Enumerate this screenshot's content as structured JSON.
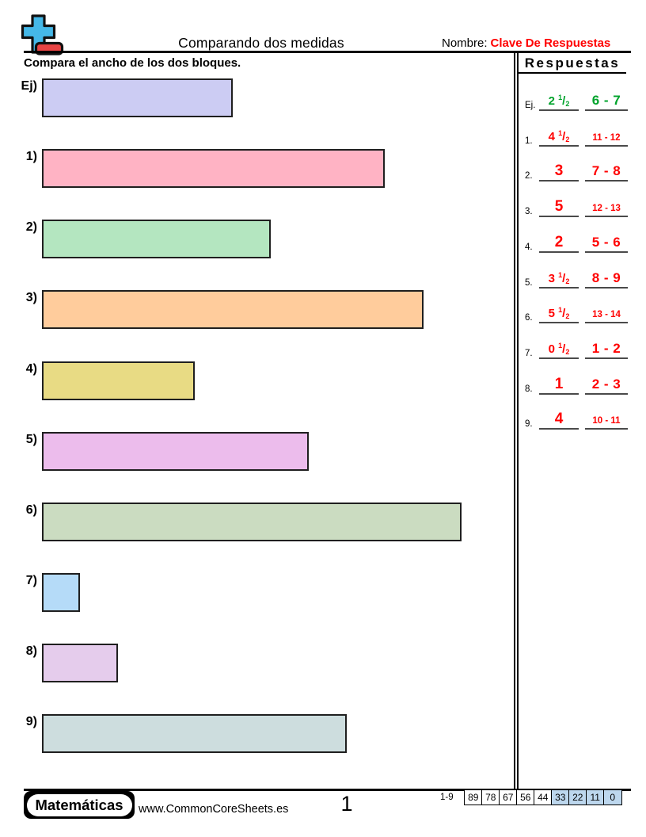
{
  "header": {
    "title": "Comparando dos medidas",
    "name_label": "Nombre:",
    "name_value": "Clave De Respuestas",
    "instruction": "Compara el ancho de los dos bloques.",
    "name_color": "#FF0000"
  },
  "logo": {
    "plus_color": "#45B8E8",
    "minus_color": "#E84444"
  },
  "problems": [
    {
      "label": "Ej)",
      "units": 2.5,
      "color": "#CCCCF3"
    },
    {
      "label": "1)",
      "units": 4.5,
      "color": "#FFB3C4"
    },
    {
      "label": "2)",
      "units": 3,
      "color": "#B4E6C0"
    },
    {
      "label": "3)",
      "units": 5,
      "color": "#FFCC9C"
    },
    {
      "label": "4)",
      "units": 2,
      "color": "#E8DB84"
    },
    {
      "label": "5)",
      "units": 3.5,
      "color": "#ECBCEC"
    },
    {
      "label": "6)",
      "units": 5.5,
      "color": "#CBDCC1"
    },
    {
      "label": "7)",
      "units": 0.5,
      "color": "#B5DBF8"
    },
    {
      "label": "8)",
      "units": 1,
      "color": "#E5CCEC"
    },
    {
      "label": "9)",
      "units": 4,
      "color": "#CDDDDE"
    }
  ],
  "answers": {
    "title": "Respuestas",
    "rows": [
      {
        "label": "Ej.",
        "whole": "2",
        "num": "1",
        "den": "2",
        "range": "6 - 7",
        "color": "#00A32C"
      },
      {
        "label": "1.",
        "whole": "4",
        "num": "1",
        "den": "2",
        "range": "11 - 12",
        "color": "#FF0000"
      },
      {
        "label": "2.",
        "whole": "3",
        "range": "7 - 8",
        "color": "#FF0000"
      },
      {
        "label": "3.",
        "whole": "5",
        "range": "12 - 13",
        "color": "#FF0000"
      },
      {
        "label": "4.",
        "whole": "2",
        "range": "5 - 6",
        "color": "#FF0000"
      },
      {
        "label": "5.",
        "whole": "3",
        "num": "1",
        "den": "2",
        "range": "8 - 9",
        "color": "#FF0000"
      },
      {
        "label": "6.",
        "whole": "5",
        "num": "1",
        "den": "2",
        "range": "13 - 14",
        "color": "#FF0000"
      },
      {
        "label": "7.",
        "whole": "0",
        "num": "1",
        "den": "2",
        "range": "1 - 2",
        "color": "#FF0000"
      },
      {
        "label": "8.",
        "whole": "1",
        "range": "2 - 3",
        "color": "#FF0000"
      },
      {
        "label": "9.",
        "whole": "4",
        "range": "10 - 11",
        "color": "#FF0000"
      }
    ]
  },
  "footer": {
    "brand": "Matemáticas",
    "url": "www.CommonCoreSheets.es",
    "page_number": "1",
    "score_label": "1-9",
    "score_highlight_color": "#BDD7EE",
    "scores": [
      {
        "value": "89",
        "highlight": false
      },
      {
        "value": "78",
        "highlight": false
      },
      {
        "value": "67",
        "highlight": false
      },
      {
        "value": "56",
        "highlight": false
      },
      {
        "value": "44",
        "highlight": false
      },
      {
        "value": "33",
        "highlight": true
      },
      {
        "value": "22",
        "highlight": true
      },
      {
        "value": "11",
        "highlight": true
      },
      {
        "value": "0",
        "highlight": true
      }
    ]
  }
}
